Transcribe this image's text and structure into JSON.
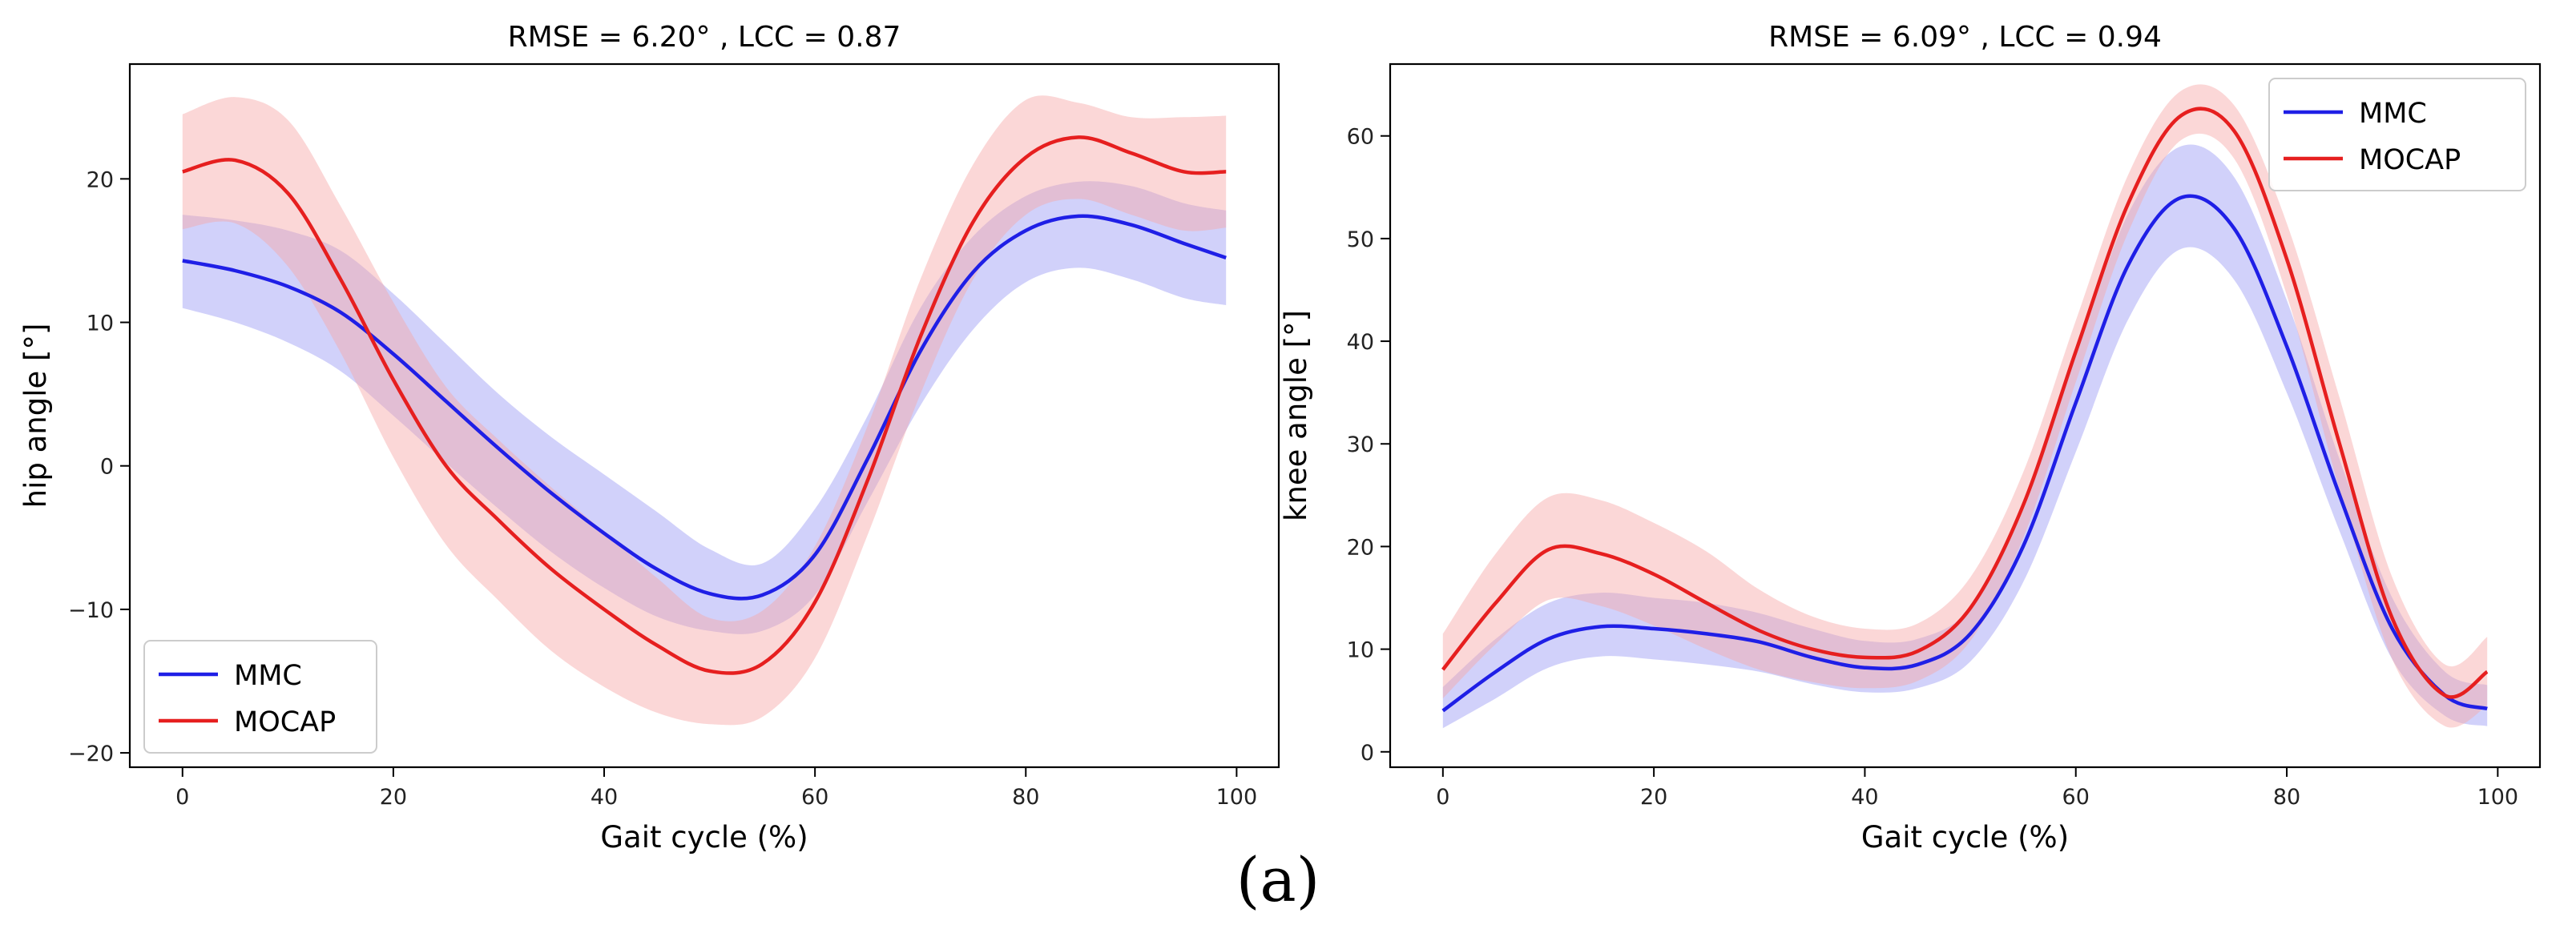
{
  "figure": {
    "caption": "(a)"
  },
  "chart_data": [
    {
      "type": "line",
      "title": "RMSE = 6.20° , LCC = 0.87",
      "xlabel": "Gait cycle (%)",
      "ylabel": "hip angle [°]",
      "xlim": [
        -5,
        104
      ],
      "ylim": [
        -21,
        28
      ],
      "xticks": [
        0,
        20,
        40,
        60,
        80,
        100
      ],
      "yticks": [
        -20,
        -10,
        0,
        10,
        20
      ],
      "grid": false,
      "legend": "bottom-left",
      "x": [
        0,
        5,
        10,
        15,
        20,
        25,
        30,
        35,
        40,
        45,
        50,
        55,
        60,
        65,
        70,
        75,
        80,
        85,
        90,
        95,
        99
      ],
      "series": [
        {
          "name": "MMC",
          "color": "#1f1fe6",
          "band_color": "#9a9af5",
          "values": [
            14.3,
            13.6,
            12.5,
            10.7,
            7.8,
            4.5,
            1.2,
            -1.9,
            -4.7,
            -7.2,
            -8.9,
            -9.0,
            -6.2,
            0.5,
            8.0,
            13.5,
            16.4,
            17.4,
            16.8,
            15.5,
            14.5
          ],
          "lower": [
            11.0,
            10.0,
            8.6,
            6.6,
            3.5,
            0.2,
            -3.0,
            -6.0,
            -8.5,
            -10.5,
            -11.5,
            -11.5,
            -9.0,
            -2.5,
            4.2,
            9.5,
            12.8,
            13.8,
            13.0,
            11.7,
            11.2
          ],
          "upper": [
            17.5,
            17.1,
            16.4,
            15.0,
            12.0,
            8.5,
            5.0,
            2.0,
            -0.6,
            -3.2,
            -5.8,
            -6.8,
            -3.0,
            3.5,
            11.0,
            16.0,
            18.8,
            19.8,
            19.5,
            18.3,
            17.8
          ]
        },
        {
          "name": "MOCAP",
          "color": "#e61f1f",
          "band_color": "#f7a6a6",
          "values": [
            20.5,
            21.3,
            19.0,
            13.0,
            6.0,
            0.0,
            -3.8,
            -7.2,
            -10.0,
            -12.5,
            -14.3,
            -13.8,
            -9.5,
            -1.0,
            9.0,
            17.0,
            21.5,
            22.9,
            21.8,
            20.5,
            20.5
          ],
          "lower": [
            16.5,
            16.9,
            13.9,
            7.9,
            0.6,
            -5.5,
            -9.4,
            -12.9,
            -15.4,
            -17.2,
            -18.0,
            -17.5,
            -13.4,
            -4.8,
            5.0,
            13.0,
            17.5,
            18.6,
            17.5,
            16.4,
            16.6
          ],
          "upper": [
            24.5,
            25.7,
            24.1,
            18.1,
            11.4,
            5.5,
            1.8,
            -1.5,
            -4.6,
            -7.8,
            -10.6,
            -10.1,
            -5.6,
            2.8,
            13.0,
            21.0,
            25.5,
            25.3,
            24.3,
            24.3,
            24.4
          ]
        }
      ]
    },
    {
      "type": "line",
      "title": "RMSE = 6.09° , LCC = 0.94",
      "xlabel": "Gait cycle (%)",
      "ylabel": "knee angle [°]",
      "xlim": [
        -5,
        104
      ],
      "ylim": [
        -1.5,
        67
      ],
      "xticks": [
        0,
        20,
        40,
        60,
        80,
        100
      ],
      "yticks": [
        0,
        10,
        20,
        30,
        40,
        50,
        60
      ],
      "grid": false,
      "legend": "top-right",
      "x": [
        0,
        5,
        10,
        15,
        20,
        25,
        30,
        35,
        40,
        45,
        50,
        55,
        60,
        65,
        70,
        75,
        80,
        85,
        90,
        95,
        99
      ],
      "series": [
        {
          "name": "MMC",
          "color": "#1f1fe6",
          "band_color": "#9a9af5",
          "values": [
            4.0,
            7.8,
            11.0,
            12.2,
            12.0,
            11.5,
            10.7,
            9.2,
            8.2,
            8.5,
            11.5,
            20.0,
            34.0,
            47.5,
            54.0,
            51.0,
            39.5,
            25.0,
            12.0,
            5.5,
            4.2
          ],
          "lower": [
            2.3,
            5.2,
            8.2,
            9.3,
            9.0,
            8.5,
            7.8,
            6.6,
            5.8,
            6.2,
            8.8,
            16.5,
            29.2,
            42.2,
            49.0,
            46.0,
            35.0,
            21.5,
            9.0,
            3.5,
            2.5
          ],
          "upper": [
            6.3,
            11.0,
            14.5,
            15.5,
            15.0,
            14.5,
            13.5,
            12.0,
            10.8,
            11.0,
            14.0,
            23.5,
            38.5,
            52.5,
            59.0,
            56.0,
            44.0,
            28.5,
            15.0,
            7.8,
            6.5
          ]
        },
        {
          "name": "MOCAP",
          "color": "#e61f1f",
          "band_color": "#f7a6a6",
          "values": [
            8.0,
            14.5,
            19.7,
            19.3,
            17.3,
            14.5,
            11.8,
            10.0,
            9.2,
            9.8,
            14.0,
            24.0,
            39.0,
            53.5,
            62.0,
            60.5,
            48.0,
            30.0,
            13.0,
            5.5,
            7.8
          ],
          "lower": [
            5.2,
            10.5,
            14.8,
            14.2,
            12.3,
            10.0,
            8.0,
            6.8,
            6.2,
            6.9,
            10.8,
            20.8,
            36.0,
            50.7,
            59.6,
            57.8,
            44.5,
            25.5,
            9.0,
            2.5,
            4.5
          ],
          "upper": [
            11.5,
            19.3,
            24.8,
            24.5,
            22.3,
            19.5,
            15.8,
            13.2,
            12.0,
            12.5,
            17.0,
            27.2,
            42.0,
            56.3,
            64.4,
            63.0,
            51.5,
            34.5,
            17.0,
            8.5,
            11.2
          ]
        }
      ]
    }
  ]
}
